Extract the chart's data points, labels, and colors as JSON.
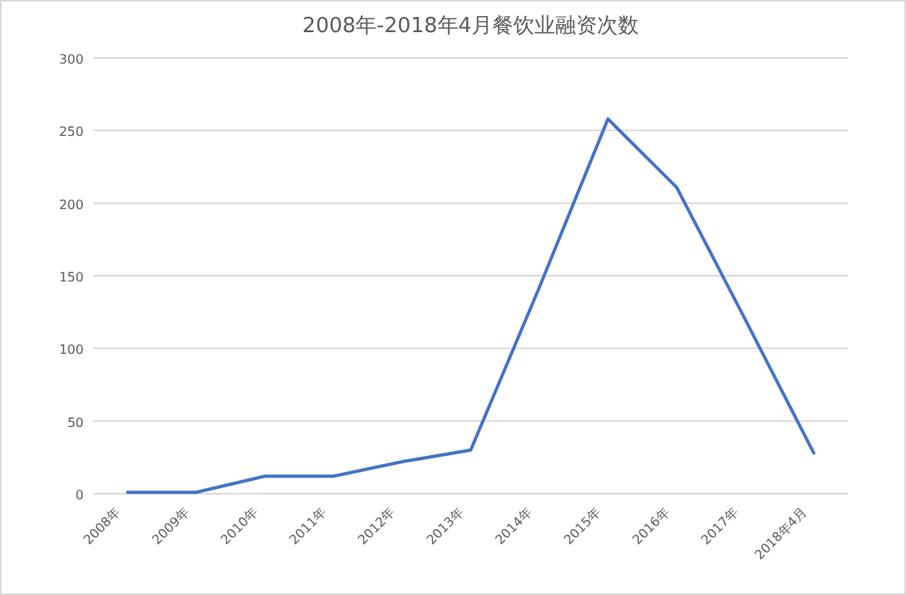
{
  "chart_data": {
    "type": "line",
    "title": "2008年-2018年4月餐饮业融资次数",
    "categories": [
      "2008年",
      "2009年",
      "2010年",
      "2011年",
      "2012年",
      "2013年",
      "2014年",
      "2015年",
      "2016年",
      "2017年",
      "2018年4月"
    ],
    "series": [
      {
        "color": "#4472c4",
        "values": [
          1,
          1,
          12,
          12,
          22,
          30,
          142,
          258,
          211,
          120,
          28
        ]
      }
    ],
    "ylim": [
      0,
      300
    ],
    "yticks": [
      0,
      50,
      100,
      150,
      200,
      250,
      300
    ],
    "grid": "y",
    "marker": "none",
    "line_style": "solid"
  }
}
